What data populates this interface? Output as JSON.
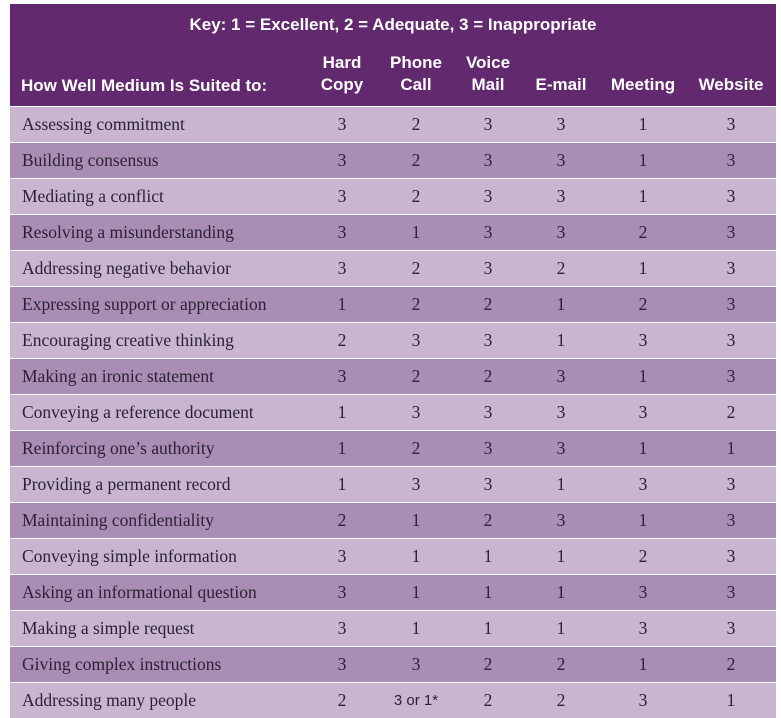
{
  "key_text": "Key: 1 = Excellent, 2 = Adequate, 3 = Inappropriate",
  "row_header": "How Well Medium Is Suited to:",
  "columns": [
    {
      "line1": "Hard",
      "line2": "Copy"
    },
    {
      "line1": "Phone",
      "line2": "Call"
    },
    {
      "line1": "Voice",
      "line2": "Mail"
    },
    {
      "line1": "",
      "line2": "E-mail"
    },
    {
      "line1": "",
      "line2": "Meeting"
    },
    {
      "line1": "",
      "line2": "Website"
    }
  ],
  "rows": [
    {
      "label": "Assessing commitment",
      "values": [
        "3",
        "2",
        "3",
        "3",
        "1",
        "3"
      ]
    },
    {
      "label": "Building consensus",
      "values": [
        "3",
        "2",
        "3",
        "3",
        "1",
        "3"
      ]
    },
    {
      "label": "Mediating a conflict",
      "values": [
        "3",
        "2",
        "3",
        "3",
        "1",
        "3"
      ]
    },
    {
      "label": "Resolving a misunderstanding",
      "values": [
        "3",
        "1",
        "3",
        "3",
        "2",
        "3"
      ]
    },
    {
      "label": "Addressing negative behavior",
      "values": [
        "3",
        "2",
        "3",
        "2",
        "1",
        "3"
      ]
    },
    {
      "label": "Expressing support or appreciation",
      "values": [
        "1",
        "2",
        "2",
        "1",
        "2",
        "3"
      ]
    },
    {
      "label": "Encouraging creative thinking",
      "values": [
        "2",
        "3",
        "3",
        "1",
        "3",
        "3"
      ]
    },
    {
      "label": "Making an ironic statement",
      "values": [
        "3",
        "2",
        "2",
        "3",
        "1",
        "3"
      ]
    },
    {
      "label": "Conveying a reference document",
      "values": [
        "1",
        "3",
        "3",
        "3",
        "3",
        "2"
      ]
    },
    {
      "label": "Reinforcing one’s authority",
      "values": [
        "1",
        "2",
        "3",
        "3",
        "1",
        "1"
      ]
    },
    {
      "label": "Providing a permanent record",
      "values": [
        "1",
        "3",
        "3",
        "1",
        "3",
        "3"
      ]
    },
    {
      "label": "Maintaining confidentiality",
      "values": [
        "2",
        "1",
        "2",
        "3",
        "1",
        "3"
      ]
    },
    {
      "label": "Conveying simple information",
      "values": [
        "3",
        "1",
        "1",
        "1",
        "2",
        "3"
      ]
    },
    {
      "label": "Asking an informational question",
      "values": [
        "3",
        "1",
        "1",
        "1",
        "3",
        "3"
      ]
    },
    {
      "label": "Making a simple request",
      "values": [
        "3",
        "1",
        "1",
        "1",
        "3",
        "3"
      ]
    },
    {
      "label": "Giving complex instructions",
      "values": [
        "3",
        "3",
        "2",
        "2",
        "1",
        "2"
      ]
    },
    {
      "label": "Addressing many people",
      "values": [
        "2",
        "3 or 1*",
        "2",
        "2",
        "3",
        "1"
      ]
    }
  ],
  "colors": {
    "header": "#62296f",
    "row_light": "#c9b5d0",
    "row_dark": "#a98db5"
  }
}
